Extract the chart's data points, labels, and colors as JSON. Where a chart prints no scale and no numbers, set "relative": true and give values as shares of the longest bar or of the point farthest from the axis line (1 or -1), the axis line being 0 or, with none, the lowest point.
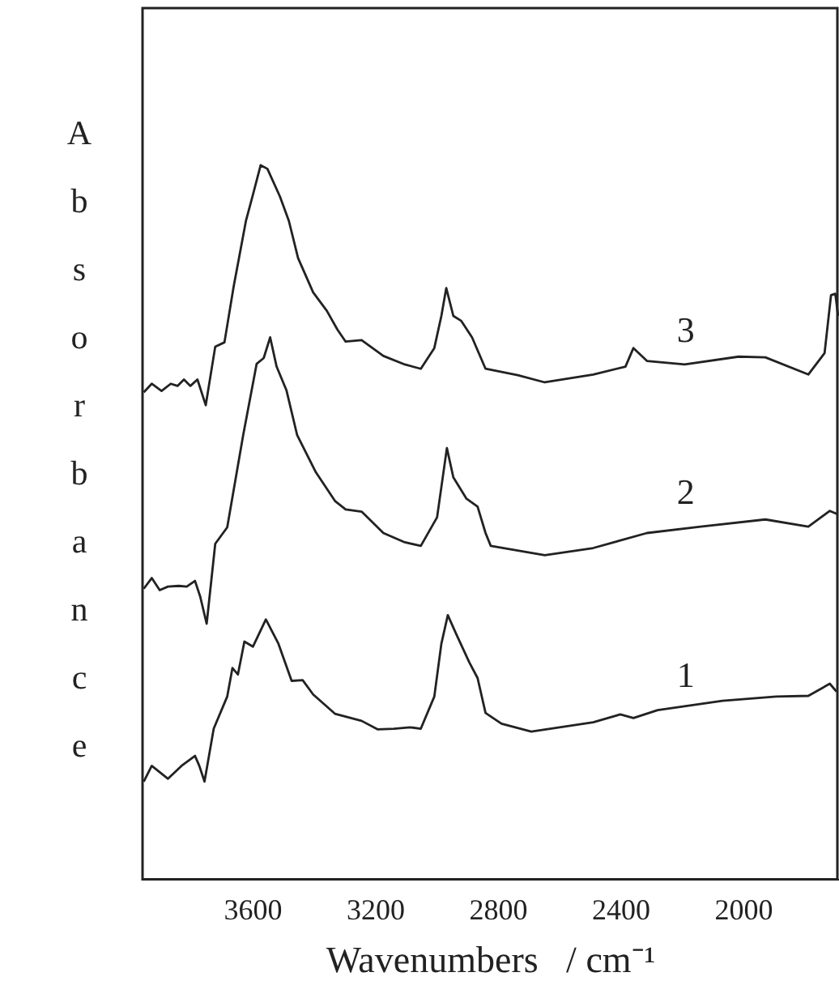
{
  "chart_data": {
    "type": "line",
    "relative": true,
    "marker": "none",
    "xlabel": "Wavenumbers   / cm⁻¹",
    "ylabel": "Absorbance",
    "xlim": [
      3960,
      1690
    ],
    "xticks": [
      3600,
      3200,
      2800,
      2400,
      2000
    ],
    "series": [
      {
        "name": "3",
        "color": "#222222",
        "x": [
          3956,
          3930,
          3898,
          3868,
          3846,
          3825,
          3804,
          3781,
          3754,
          3723,
          3693,
          3663,
          3623,
          3600,
          3575,
          3553,
          3512,
          3483,
          3453,
          3404,
          3359,
          3325,
          3298,
          3246,
          3175,
          3105,
          3053,
          3009,
          2986,
          2970,
          2947,
          2921,
          2886,
          2842,
          2737,
          2649,
          2491,
          2386,
          2360,
          2316,
          2193,
          2017,
          1930,
          1790,
          1737,
          1716,
          1702,
          1693
        ],
        "values": [
          0.682,
          0.694,
          0.684,
          0.694,
          0.691,
          0.7,
          0.691,
          0.7,
          0.664,
          0.746,
          0.752,
          0.83,
          0.922,
          0.959,
          1.0,
          0.995,
          0.956,
          0.922,
          0.87,
          0.822,
          0.796,
          0.77,
          0.753,
          0.755,
          0.733,
          0.721,
          0.715,
          0.744,
          0.789,
          0.828,
          0.789,
          0.782,
          0.759,
          0.715,
          0.706,
          0.696,
          0.707,
          0.718,
          0.744,
          0.726,
          0.721,
          0.732,
          0.731,
          0.707,
          0.737,
          0.818,
          0.82,
          0.789
        ]
      },
      {
        "name": "2",
        "color": "#222222",
        "x": [
          3956,
          3930,
          3904,
          3877,
          3842,
          3816,
          3789,
          3772,
          3751,
          3723,
          3684,
          3632,
          3588,
          3565,
          3544,
          3523,
          3491,
          3456,
          3395,
          3333,
          3298,
          3246,
          3175,
          3105,
          3053,
          3000,
          2968,
          2947,
          2904,
          2868,
          2842,
          2825,
          2649,
          2491,
          2316,
          2141,
          1930,
          1790,
          1720,
          1693
        ],
        "values": [
          0.407,
          0.422,
          0.405,
          0.41,
          0.411,
          0.41,
          0.418,
          0.396,
          0.358,
          0.47,
          0.493,
          0.622,
          0.722,
          0.73,
          0.759,
          0.718,
          0.685,
          0.622,
          0.57,
          0.53,
          0.518,
          0.515,
          0.485,
          0.472,
          0.467,
          0.507,
          0.604,
          0.563,
          0.533,
          0.522,
          0.485,
          0.467,
          0.454,
          0.464,
          0.485,
          0.494,
          0.504,
          0.494,
          0.516,
          0.511
        ]
      },
      {
        "name": "1",
        "color": "#222222",
        "x": [
          3956,
          3930,
          3877,
          3833,
          3789,
          3775,
          3758,
          3728,
          3684,
          3667,
          3649,
          3628,
          3600,
          3558,
          3517,
          3474,
          3438,
          3404,
          3333,
          3246,
          3193,
          3141,
          3088,
          3053,
          3009,
          2986,
          2965,
          2938,
          2895,
          2868,
          2842,
          2790,
          2693,
          2491,
          2403,
          2360,
          2281,
          2070,
          1895,
          1790,
          1720,
          1698
        ],
        "values": [
          0.137,
          0.159,
          0.141,
          0.159,
          0.173,
          0.159,
          0.137,
          0.211,
          0.256,
          0.296,
          0.287,
          0.333,
          0.326,
          0.364,
          0.33,
          0.278,
          0.279,
          0.259,
          0.232,
          0.222,
          0.21,
          0.211,
          0.213,
          0.211,
          0.256,
          0.33,
          0.37,
          0.344,
          0.304,
          0.282,
          0.233,
          0.218,
          0.207,
          0.22,
          0.231,
          0.226,
          0.237,
          0.25,
          0.256,
          0.257,
          0.274,
          0.263
        ]
      }
    ]
  }
}
